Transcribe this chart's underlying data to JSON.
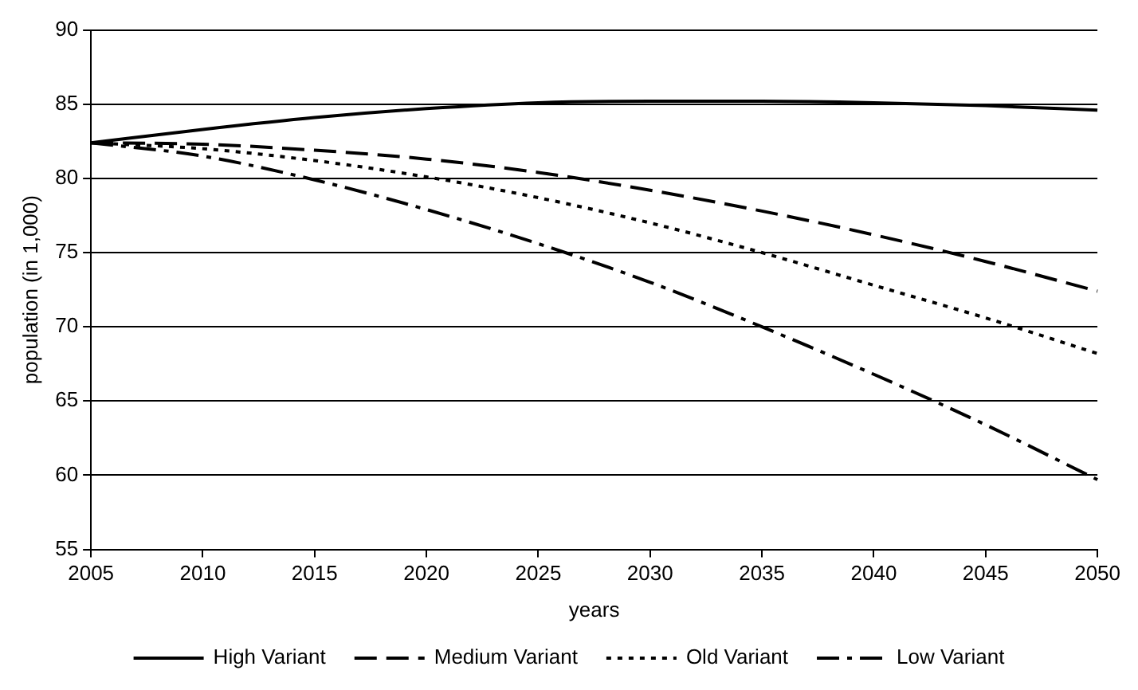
{
  "chart_data": {
    "type": "line",
    "xlabel": "years",
    "ylabel": "population (in 1,000)",
    "x": [
      2005,
      2010,
      2015,
      2020,
      2025,
      2030,
      2035,
      2040,
      2045,
      2050
    ],
    "series": [
      {
        "name": "High Variant",
        "color": "#000000",
        "line_style": "solid",
        "values": [
          82.4,
          83.3,
          84.1,
          84.7,
          85.1,
          85.2,
          85.2,
          85.1,
          84.9,
          84.6
        ]
      },
      {
        "name": "Medium Variant",
        "color": "#000000",
        "line_style": "dashed",
        "values": [
          82.4,
          82.3,
          81.9,
          81.3,
          80.4,
          79.2,
          77.8,
          76.2,
          74.4,
          72.4
        ]
      },
      {
        "name": "Old Variant",
        "color": "#000000",
        "line_style": "dotted",
        "values": [
          82.4,
          82.0,
          81.2,
          80.1,
          78.7,
          77.0,
          75.0,
          72.8,
          70.6,
          68.2
        ]
      },
      {
        "name": "Low Variant",
        "color": "#000000",
        "line_style": "dashdot",
        "values": [
          82.4,
          81.5,
          79.9,
          77.9,
          75.6,
          73.0,
          70.0,
          66.8,
          63.4,
          59.7
        ]
      }
    ],
    "xlim": [
      2005,
      2050
    ],
    "xticks": [
      2005,
      2010,
      2015,
      2020,
      2025,
      2030,
      2035,
      2040,
      2045,
      2050
    ],
    "ylim": [
      55,
      90
    ],
    "yticks": [
      55,
      60,
      65,
      70,
      75,
      80,
      85,
      90
    ],
    "grid": "y",
    "legend": "bottom",
    "marker": "none"
  }
}
